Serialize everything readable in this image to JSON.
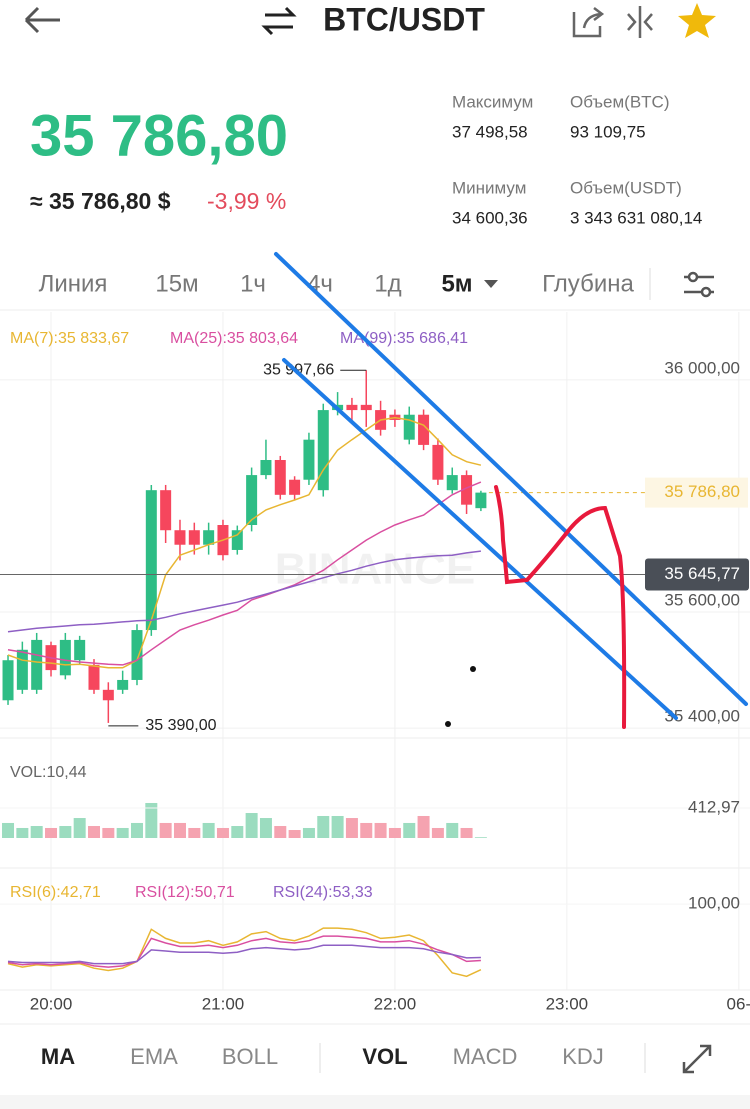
{
  "header": {
    "pair": "BTC/USDT"
  },
  "ticker": {
    "price": "35 786,80",
    "fiat": "≈ 35 786,80 $",
    "change": "-3,99 %",
    "stats": [
      {
        "label": "Максимум",
        "value": "37 498,58"
      },
      {
        "label": "Объем(BTC)",
        "value": "93 109,75"
      },
      {
        "label": "Минимум",
        "value": "34 600,36"
      },
      {
        "label": "Объем(USDT)",
        "value": "3 343 631 080,14"
      }
    ]
  },
  "tabs": {
    "items": [
      "Линия",
      "15м",
      "1ч",
      "4ч",
      "1д",
      "5м",
      "Глубина"
    ],
    "active_index": 5
  },
  "indicators": {
    "main": [
      "MA",
      "EMA",
      "BOLL"
    ],
    "sub": [
      "VOL",
      "MACD",
      "KDJ"
    ],
    "main_active": 0,
    "sub_active": 0
  },
  "chart_data": {
    "type": "candlestick",
    "watermark": "BINANCE",
    "xlim": [
      -0.56,
      51.78
    ],
    "xticks": [
      {
        "value": 3,
        "label": "20:00"
      },
      {
        "value": 15,
        "label": "21:00"
      },
      {
        "value": 27,
        "label": "22:00"
      },
      {
        "value": 39,
        "label": "23:00"
      },
      {
        "value": 51,
        "label": "06-"
      }
    ],
    "ylim": [
      35364,
      36098
    ],
    "yticks": [
      {
        "value": 36000,
        "label": "36 000,00"
      },
      {
        "value": 35600,
        "label": "35 600,00"
      },
      {
        "value": 35400,
        "label": "35 400,00"
      }
    ],
    "up_color": "#2ebd85",
    "down_color": "#f6465d",
    "open": [
      35429,
      35447,
      35447,
      35524,
      35472,
      35498,
      35490,
      35447,
      35447,
      35464,
      35550,
      35791,
      35722,
      35722,
      35697,
      35731,
      35688,
      35731,
      35817,
      35843,
      35809,
      35809,
      35791,
      35929,
      35938,
      35938,
      35929,
      35921,
      35878,
      35921,
      35869,
      35791,
      35817,
      35760
    ],
    "high": [
      35507,
      35530,
      35545,
      35530,
      35545,
      35540,
      35500,
      35460,
      35480,
      35560,
      35800,
      35800,
      35740,
      35735,
      35735,
      35740,
      35730,
      35830,
      35878,
      35850,
      35815,
      35890,
      35940,
      35960,
      35950,
      35997.66,
      35945,
      35930,
      35935,
      35930,
      35880,
      35830,
      35825,
      35790
    ],
    "low": [
      35421,
      35440,
      35440,
      35470,
      35465,
      35490,
      35440,
      35390,
      35440,
      35455,
      35540,
      35700,
      35670,
      35680,
      35680,
      35670,
      35680,
      35720,
      35810,
      35775,
      35775,
      35800,
      35780,
      35920,
      35910,
      35900,
      35885,
      35900,
      35870,
      35860,
      35800,
      35785,
      35750,
      35755
    ],
    "close": [
      35498,
      35516,
      35533,
      35481,
      35533,
      35533,
      35447,
      35429,
      35464,
      35550,
      35791,
      35722,
      35697,
      35697,
      35722,
      35679,
      35722,
      35817,
      35843,
      35783,
      35783,
      35878,
      35929,
      35938,
      35929,
      35929,
      35895,
      35912,
      35921,
      35869,
      35809,
      35817,
      35766,
      35786.8
    ],
    "high_label": {
      "index": 25,
      "value": 35997.66,
      "label": "35 997,66"
    },
    "low_label": {
      "index": 7,
      "value": 35390,
      "label": "35 390,00"
    },
    "last_price": {
      "value": 35786.8,
      "label": "35 786,80",
      "color": "#e8b632"
    },
    "crosshair": {
      "value": 35645.77,
      "label": "35 645,77"
    },
    "ma": [
      {
        "label": "MA(7):35 833,67",
        "color": "#e8b632",
        "values": [
          35507,
          35498,
          35495,
          35493,
          35490,
          35491,
          35488,
          35485,
          35485,
          35498,
          35567,
          35645,
          35679,
          35688,
          35697,
          35705,
          35714,
          35740,
          35757,
          35766,
          35774,
          35783,
          35826,
          35860,
          35878,
          35895,
          35912,
          35916,
          35912,
          35903,
          35878,
          35852,
          35840,
          35834
        ]
      },
      {
        "label": "MA(25):35 803,64",
        "color": "#d94fa0",
        "values": [
          35516,
          35512,
          35507,
          35502,
          35498,
          35495,
          35493,
          35491,
          35490,
          35498,
          35516,
          35533,
          35550,
          35559,
          35567,
          35576,
          35584,
          35602,
          35610,
          35619,
          35628,
          35640,
          35653,
          35671,
          35688,
          35705,
          35719,
          35731,
          35740,
          35748,
          35766,
          35783,
          35795,
          35805
        ]
      },
      {
        "label": "MA(99):35 686,41",
        "color": "#8e5fc4",
        "values": [
          35547,
          35550,
          35553,
          35555,
          35557,
          35559,
          35560,
          35562,
          35564,
          35566,
          35567,
          35572,
          35578,
          35583,
          35588,
          35593,
          35598,
          35605,
          35612,
          35619,
          35626,
          35633,
          35640,
          35647,
          35653,
          35660,
          35666,
          35671,
          35674,
          35676,
          35678,
          35679,
          35683,
          35686
        ]
      }
    ],
    "volume": {
      "label": "VOL:10,44",
      "ylim": [
        0,
        1074
      ],
      "yticks": [
        {
          "value": 412.97,
          "label": "412,97"
        }
      ],
      "up_color": "#9bdcbf",
      "down_color": "#f5a3b0",
      "values": [
        207,
        138,
        165,
        138,
        165,
        275,
        165,
        138,
        138,
        207,
        482,
        207,
        207,
        138,
        207,
        138,
        165,
        344,
        275,
        165,
        110,
        138,
        303,
        303,
        275,
        207,
        207,
        138,
        207,
        303,
        138,
        207,
        138,
        10.44
      ]
    },
    "rsi": {
      "ylim": [
        25,
        121
      ],
      "yticks": [
        {
          "value": 100,
          "label": "100,00"
        }
      ],
      "series": [
        {
          "label": "RSI(6):42,71",
          "color": "#e8b632",
          "values": [
            48,
            45,
            47,
            46,
            47,
            48,
            44,
            42,
            44,
            50,
            78,
            70,
            66,
            66,
            68,
            64,
            67,
            74,
            76,
            70,
            68,
            72,
            79,
            79,
            78,
            75,
            70,
            71,
            73,
            68,
            55,
            40,
            37,
            42.71
          ]
        },
        {
          "label": "RSI(12):50,71",
          "color": "#d94fa0",
          "values": [
            49,
            47,
            48,
            47,
            48,
            49,
            46,
            45,
            46,
            50,
            70,
            66,
            63,
            63,
            64,
            62,
            64,
            68,
            70,
            67,
            66,
            68,
            72,
            72,
            71,
            70,
            67,
            67,
            68,
            65,
            60,
            56,
            50,
            50.71
          ]
        },
        {
          "label": "RSI(24):53,33",
          "color": "#8e5fc4",
          "values": [
            50,
            49,
            49,
            49,
            49,
            50,
            48,
            48,
            48,
            50,
            60,
            59,
            58,
            58,
            58,
            57,
            58,
            61,
            62,
            61,
            60,
            61,
            64,
            64,
            64,
            63,
            62,
            62,
            62,
            61,
            58,
            56,
            53,
            53.33
          ]
        }
      ]
    }
  }
}
